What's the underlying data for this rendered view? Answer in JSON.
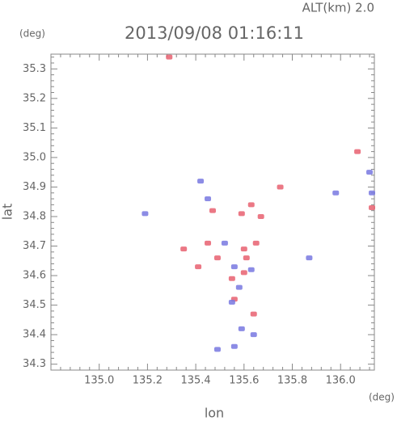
{
  "chart_data": {
    "type": "scatter",
    "title": "2013/09/08 01:16:11",
    "subtitle": "ALT(km) 2.0",
    "x_label": "lon",
    "y_label": "lat",
    "x_unit": "(deg)",
    "y_unit": "(deg)",
    "xlim": [
      134.8,
      136.14
    ],
    "ylim": [
      34.28,
      35.35
    ],
    "xticks": [
      {
        "value": 135.0,
        "label": "135.0"
      },
      135.2,
      135.4,
      135.6,
      135.8,
      {
        "value": 136.0,
        "label": "136.0"
      }
    ],
    "yticks": [
      34.3,
      34.4,
      34.5,
      34.6,
      34.7,
      34.8,
      34.9,
      {
        "value": 35.0,
        "label": "35.0"
      },
      35.1,
      35.2,
      35.3
    ],
    "series": [
      {
        "color": "#e86070",
        "x": [
          135.29,
          136.07,
          136.13,
          135.47,
          135.59,
          135.63,
          135.67,
          135.75,
          135.45,
          135.49,
          135.6,
          135.61,
          135.55,
          135.56,
          135.65,
          135.6,
          135.41,
          135.35,
          135.64
        ],
        "y": [
          35.34,
          35.02,
          34.83,
          34.82,
          34.81,
          34.84,
          34.8,
          34.9,
          34.71,
          34.66,
          34.69,
          34.66,
          34.59,
          34.52,
          34.71,
          34.61,
          34.63,
          34.69,
          34.47
        ]
      },
      {
        "color": "#7878e0",
        "x": [
          136.12,
          135.98,
          136.13,
          135.42,
          135.45,
          135.19,
          135.52,
          135.56,
          135.58,
          135.55,
          135.63,
          135.87,
          135.59,
          135.64,
          135.49,
          135.56
        ],
        "y": [
          34.95,
          34.88,
          34.88,
          34.92,
          34.86,
          34.81,
          34.71,
          34.63,
          34.56,
          34.51,
          34.62,
          34.66,
          34.42,
          34.4,
          34.35,
          34.36
        ]
      }
    ]
  }
}
